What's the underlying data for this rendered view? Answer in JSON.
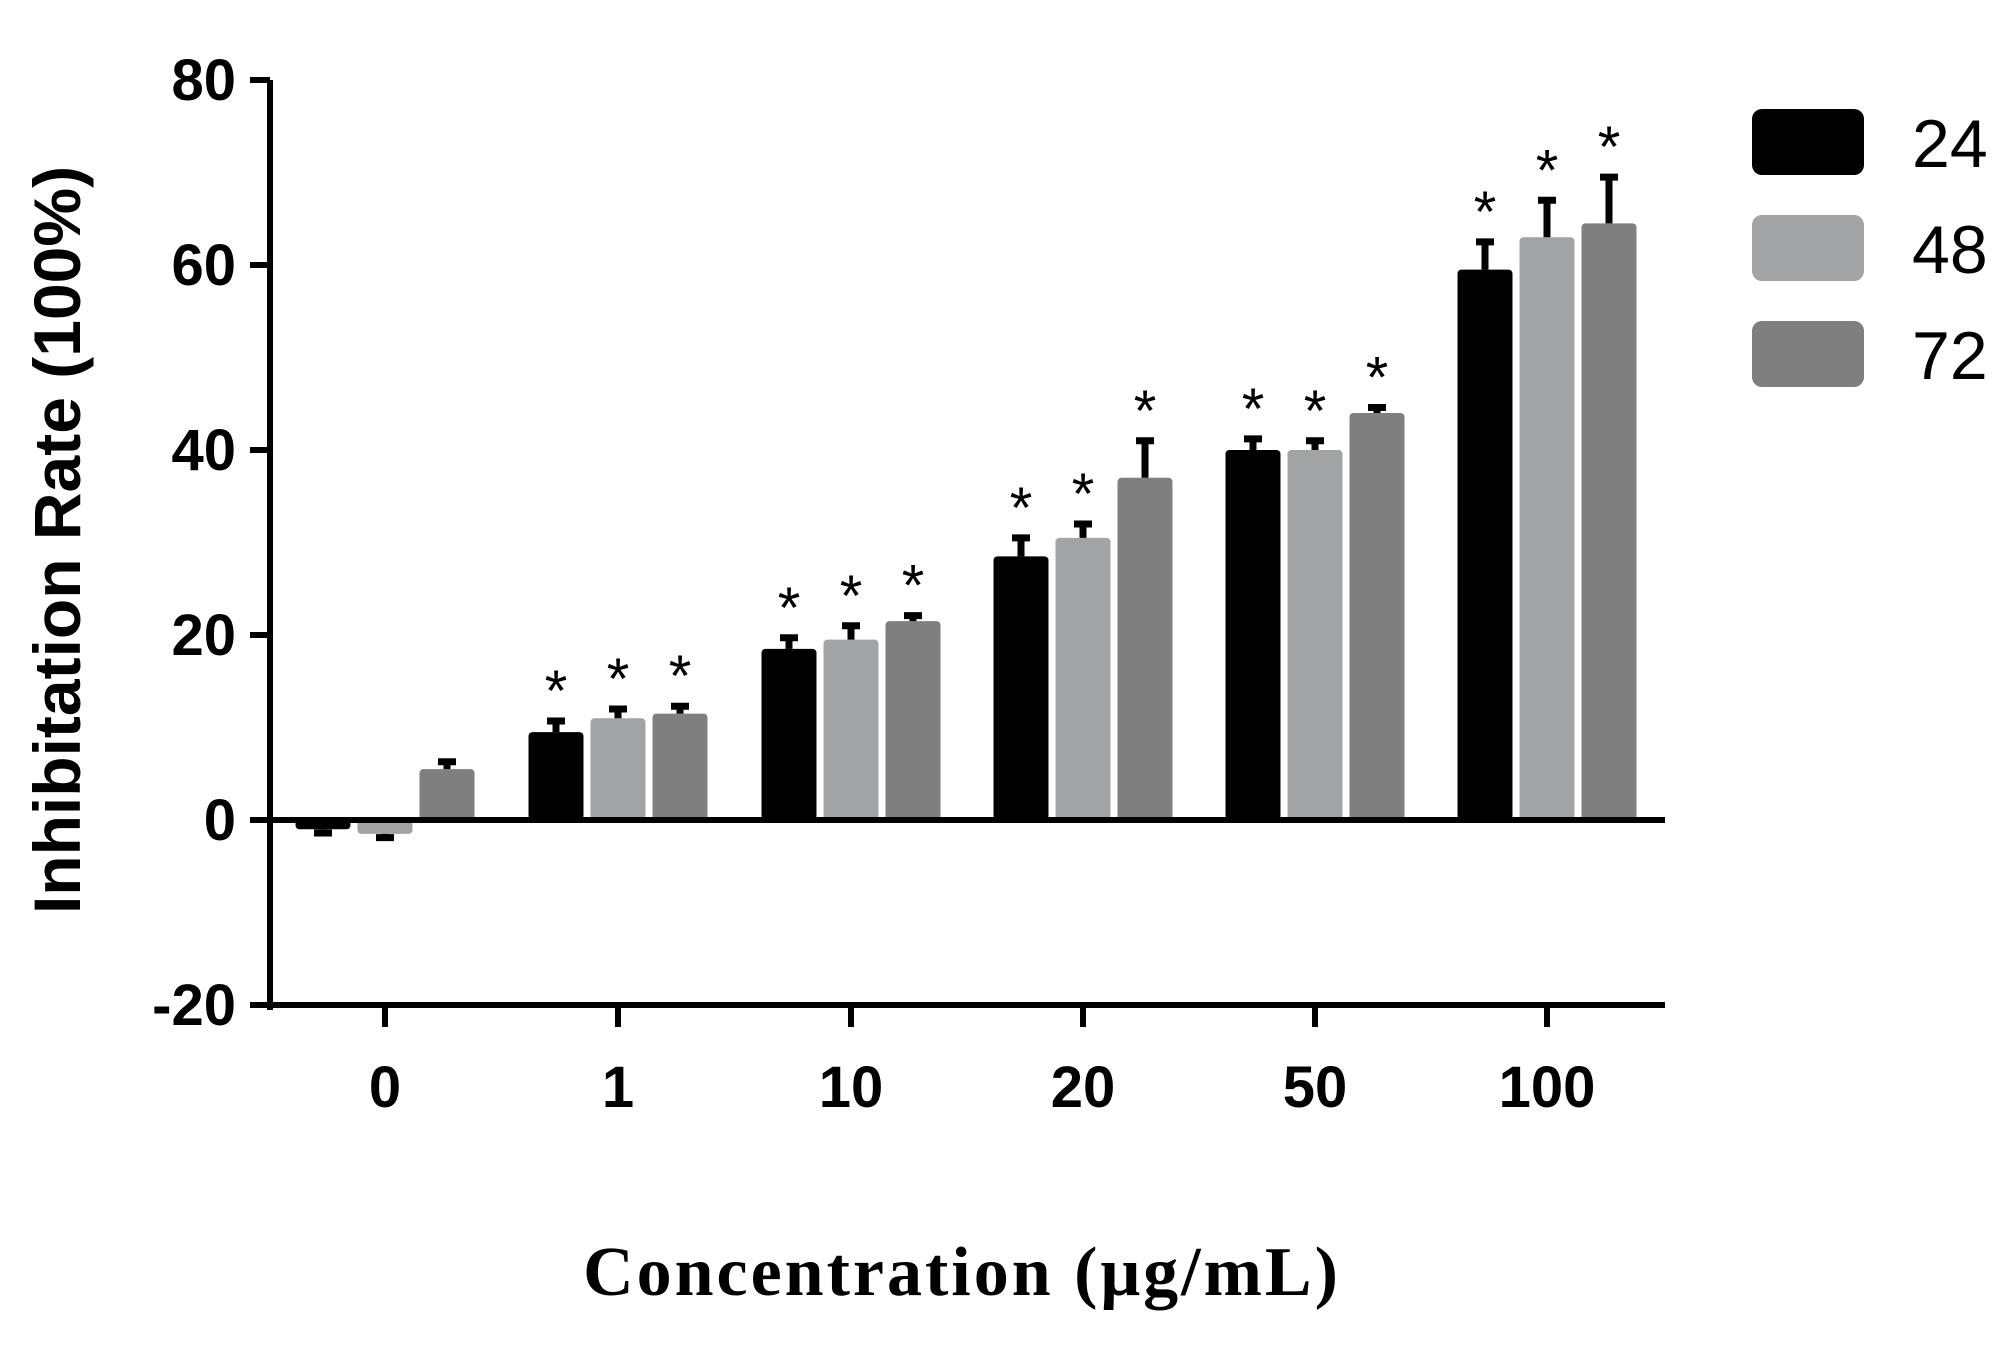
{
  "chart_data": {
    "type": "bar",
    "title": "",
    "xlabel": "Concentration (μg/mL)",
    "ylabel": "Inhibitation Rate (100%)",
    "ylim": [
      -20,
      80
    ],
    "yticks": [
      -20,
      0,
      20,
      40,
      60,
      80
    ],
    "categories": [
      "0",
      "1",
      "10",
      "20",
      "50",
      "100"
    ],
    "series": [
      {
        "name": "24",
        "color": "#000000",
        "values": [
          -1,
          9.5,
          18.5,
          28.5,
          40,
          59.5
        ],
        "errors": [
          0.4,
          1.2,
          1.2,
          2.0,
          1.2,
          3.0
        ],
        "significance": [
          "",
          "*",
          "*",
          "*",
          "*",
          "*"
        ]
      },
      {
        "name": "48",
        "color": "#a2a3a5",
        "values": [
          -1.5,
          11,
          19.5,
          30.5,
          40,
          63
        ],
        "errors": [
          0.4,
          1.0,
          1.5,
          1.5,
          1.0,
          4.0
        ],
        "significance": [
          "",
          "*",
          "*",
          "*",
          "*",
          "*"
        ]
      },
      {
        "name": "72",
        "color": "#7f7f7f",
        "values": [
          5.5,
          11.5,
          21.5,
          37,
          44,
          64.5
        ],
        "errors": [
          0.8,
          0.8,
          0.6,
          4.0,
          0.6,
          5.0
        ],
        "significance": [
          "",
          "*",
          "*",
          "*",
          "*",
          "*"
        ]
      }
    ],
    "legend": {
      "position": "right",
      "entries": [
        "24",
        "48",
        "72"
      ]
    },
    "grid": false
  }
}
